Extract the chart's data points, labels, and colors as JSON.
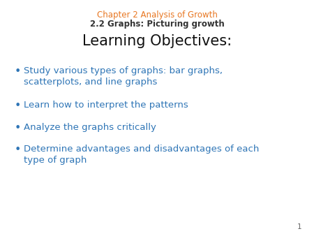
{
  "background_color": "#ffffff",
  "header_line1": "Chapter 2 Analysis of Growth",
  "header_line2": "2.2 Graphs: Picturing growth",
  "header_color": "#E87722",
  "header_line2_color": "#333333",
  "header_fontsize": 8.5,
  "title": "Learning Objectives:",
  "title_fontsize": 15,
  "title_color": "#111111",
  "bullet_color": "#2E75B6",
  "bullet_fontsize": 9.5,
  "bullet_items": [
    "Study various types of graphs: bar graphs,\nscatterplots, and line graphs",
    "Learn how to interpret the patterns",
    "Analyze the graphs critically",
    "Determine advantages and disadvantages of each\ntype of graph"
  ],
  "page_number": "1",
  "page_number_color": "#666666",
  "page_number_fontsize": 7.5,
  "fig_width": 4.5,
  "fig_height": 3.38,
  "dpi": 100
}
